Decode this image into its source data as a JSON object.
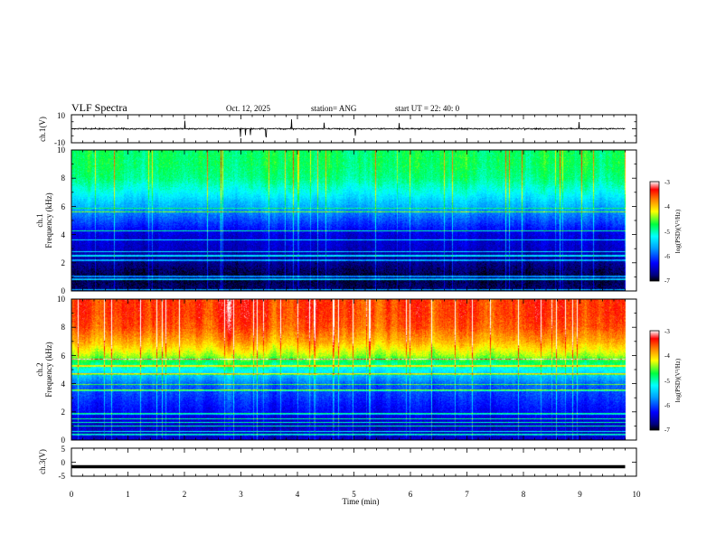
{
  "header": {
    "title": "VLF Spectra",
    "date": "Oct. 12, 2025",
    "station": "station= ANG",
    "start_ut": "start  UT =   22: 40: 0"
  },
  "chart_data": [
    {
      "type": "line",
      "panel": "ch1-waveform",
      "ylabel": "ch.1(V)",
      "ylim": [
        -10,
        10
      ],
      "yticks": [
        "10",
        "-10"
      ],
      "xlim": [
        0,
        10
      ],
      "baseline": 0,
      "noise_amplitude": 1,
      "color": "#000000"
    },
    {
      "type": "heatmap",
      "panel": "ch1-spectrogram",
      "ylabel_channel": "ch.1",
      "ylabel": "Frequency (kHz)",
      "ylim": [
        0,
        10
      ],
      "yticks": [
        "0",
        "2",
        "4",
        "6",
        "8",
        "10"
      ],
      "xlim": [
        0,
        10
      ],
      "data_end_min": 9.8,
      "colorbar": {
        "label": "log(PSD)(V²/Hz)",
        "range": [
          -7,
          -3
        ],
        "ticks": [
          "-3",
          "-4",
          "-5",
          "-6",
          "-7"
        ]
      },
      "typical_log_psd_by_freq_khz": [
        [
          0,
          -6.8
        ],
        [
          1,
          -6.9
        ],
        [
          2,
          -6.7
        ],
        [
          3,
          -6.5
        ],
        [
          4,
          -6.4
        ],
        [
          5,
          -6.0
        ],
        [
          6,
          -5.6
        ],
        [
          7,
          -5.2
        ],
        [
          8,
          -4.9
        ],
        [
          9,
          -4.8
        ],
        [
          10,
          -4.8
        ]
      ]
    },
    {
      "type": "heatmap",
      "panel": "ch2-spectrogram",
      "ylabel_channel": "ch.2",
      "ylabel": "Frequency (kHz)",
      "ylim": [
        0,
        10
      ],
      "yticks": [
        "0",
        "2",
        "4",
        "6",
        "8",
        "10"
      ],
      "xlim": [
        0,
        10
      ],
      "data_end_min": 9.8,
      "colorbar": {
        "label": "log(PSD)(V²/Hz)",
        "range": [
          -7,
          -3
        ],
        "ticks": [
          "-3",
          "-4",
          "-5",
          "-6",
          "-7"
        ]
      },
      "typical_log_psd_by_freq_khz": [
        [
          0,
          -6.5
        ],
        [
          1,
          -6.5
        ],
        [
          2,
          -6.3
        ],
        [
          3,
          -6.1
        ],
        [
          4,
          -5.9
        ],
        [
          5,
          -5.2
        ],
        [
          6,
          -4.4
        ],
        [
          7,
          -3.9
        ],
        [
          8,
          -3.6
        ],
        [
          9,
          -3.5
        ],
        [
          10,
          -3.5
        ]
      ]
    },
    {
      "type": "line",
      "panel": "ch3-waveform",
      "ylabel": "ch.3(V)",
      "ylim": [
        -5,
        5
      ],
      "yticks": [
        "5",
        "0",
        "-5"
      ],
      "xlim": [
        0,
        10
      ],
      "xlabel": "Time (min)",
      "xticks": [
        "0",
        "1",
        "2",
        "3",
        "4",
        "5",
        "6",
        "7",
        "8",
        "9",
        "10"
      ],
      "baseline": -1.6,
      "color": "#000000"
    }
  ]
}
